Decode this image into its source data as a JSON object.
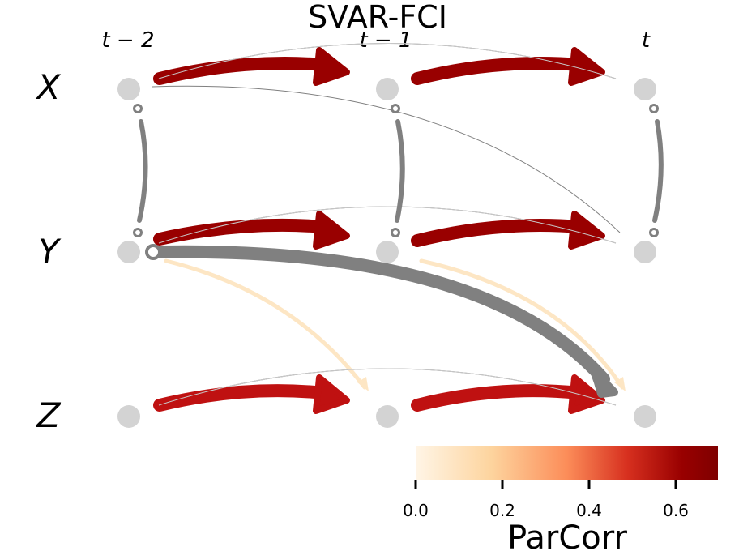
{
  "title": "SVAR-FCI",
  "time_labels": [
    "t − 2",
    "t − 1",
    "t"
  ],
  "variables": [
    "X",
    "Y",
    "Z"
  ],
  "colorbar": {
    "label": "ParCorr",
    "ticks": [
      "0.0",
      "0.2",
      "0.4",
      "0.6"
    ],
    "colors": [
      "#fff5e6",
      "#fdd49e",
      "#fc8d59",
      "#d7301f",
      "#990000",
      "#7f0000"
    ]
  },
  "colors": {
    "node": "#d3d3d3",
    "contemporaneous_link": "#808080",
    "strong_lagged": "#990000",
    "medium_lagged": "#bf1111",
    "weak_lagged": "#fde6c4",
    "thin_curve": "#808080"
  }
}
